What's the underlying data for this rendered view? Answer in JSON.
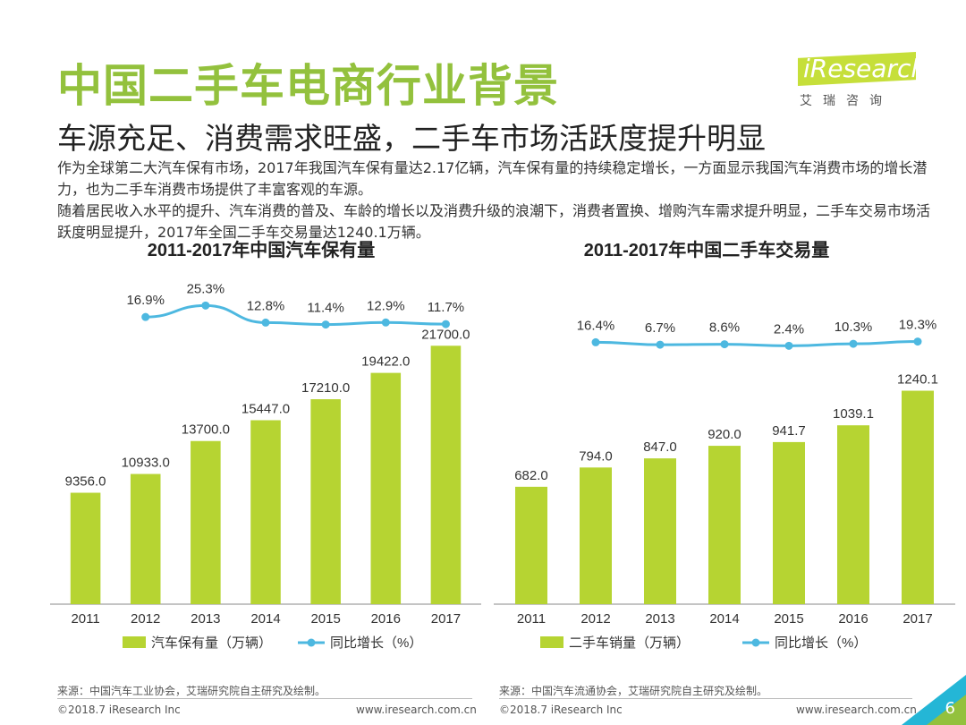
{
  "header": {
    "title": "中国二手车电商行业背景",
    "subtitle": "车源充足、消费需求旺盛，二手车市场活跃度提升明显",
    "logo_text": "iResearch",
    "logo_sub": "艾瑞咨询"
  },
  "intro": {
    "line1": "作为全球第二大汽车保有市场，2017年我国汽车保有量达2.17亿辆，汽车保有量的持续稳定增长，一方面显示我国汽车消费市场的增长潜力，也为二手车消费市场提供了丰富客观的车源。",
    "line2": "随着居民收入水平的提升、汽车消费的普及、车龄的增长以及消费升级的浪潮下，消费者置换、增购汽车需求提升明显，二手车交易市场活跃度明显提升，2017年全国二手车交易量达1240.1万辆。"
  },
  "chart_data": [
    {
      "type": "bar",
      "title": "2011-2017年中国汽车保有量",
      "categories": [
        "2011",
        "2012",
        "2013",
        "2014",
        "2015",
        "2016",
        "2017"
      ],
      "series": [
        {
          "name": "汽车保有量（万辆）",
          "type": "bar",
          "values": [
            9356.0,
            10933.0,
            13700.0,
            15447.0,
            17210.0,
            19422.0,
            21700.0
          ],
          "labels": [
            "9356.0",
            "10933.0",
            "13700.0",
            "15447.0",
            "17210.0",
            "19422.0",
            "21700.0"
          ]
        },
        {
          "name": "同比增长（%）",
          "type": "line",
          "values": [
            null,
            16.9,
            25.3,
            12.8,
            11.4,
            12.9,
            11.7
          ],
          "labels": [
            "",
            "16.9%",
            "25.3%",
            "12.8%",
            "11.4%",
            "12.9%",
            "11.7%"
          ]
        }
      ],
      "ylim": [
        0,
        23000
      ],
      "line_ylim": [
        0,
        70
      ],
      "legend": "bottom",
      "grid": false,
      "bar_color": "#b6d432",
      "line_color": "#4db8e0"
    },
    {
      "type": "bar",
      "title": "2011-2017年中国二手车交易量",
      "categories": [
        "2011",
        "2012",
        "2013",
        "2014",
        "2015",
        "2016",
        "2017"
      ],
      "series": [
        {
          "name": "二手车销量（万辆）",
          "type": "bar",
          "values": [
            682.0,
            794.0,
            847.0,
            920.0,
            941.7,
            1039.1,
            1240.1
          ],
          "labels": [
            "682.0",
            "794.0",
            "847.0",
            "920.0",
            "941.7",
            "1039.1",
            "1240.1"
          ]
        },
        {
          "name": "同比增长（%）",
          "type": "line",
          "values": [
            null,
            16.4,
            6.7,
            8.6,
            2.4,
            10.3,
            19.3
          ],
          "labels": [
            "",
            "16.4%",
            "6.7%",
            "8.6%",
            "2.4%",
            "10.3%",
            "19.3%"
          ]
        }
      ],
      "ylim": [
        0,
        1560
      ],
      "line_ylim": [
        0,
        160
      ],
      "legend": "bottom",
      "grid": false,
      "bar_color": "#b6d432",
      "line_color": "#4db8e0"
    }
  ],
  "footer": {
    "source_left": "来源：中国汽车工业协会，艾瑞研究院自主研究及绘制。",
    "source_right": "来源：中国汽车流通协会，艾瑞研究院自主研究及绘制。",
    "copyright": "©2018.7 iResearch Inc",
    "url": "www.iresearch.com.cn",
    "page_number": "6"
  }
}
